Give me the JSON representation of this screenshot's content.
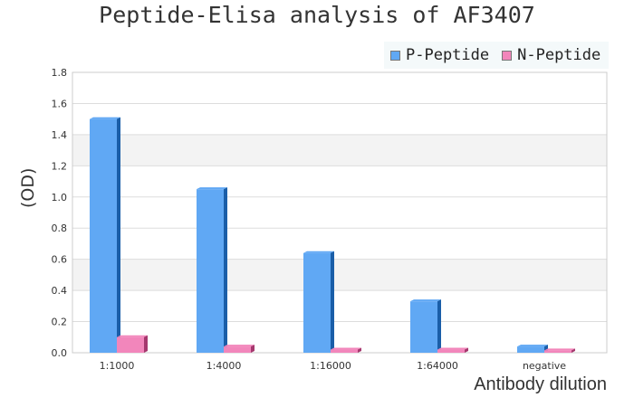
{
  "chart_data": {
    "type": "bar",
    "title": "Peptide-Elisa analysis of AF3407",
    "xlabel": "Antibody dilution",
    "ylabel": "(OD)",
    "categories": [
      "1:1000",
      "1:4000",
      "1:16000",
      "1:64000",
      "negative"
    ],
    "series": [
      {
        "name": "P-Peptide",
        "color": "#60a8f4",
        "values": [
          1.5,
          1.05,
          0.64,
          0.33,
          0.04
        ]
      },
      {
        "name": "N-Peptide",
        "color": "#f286bb",
        "values": [
          0.1,
          0.04,
          0.02,
          0.02,
          0.015
        ]
      }
    ],
    "ylim": [
      0,
      1.8
    ],
    "yticks": [
      "0.0",
      "0.2",
      "0.4",
      "0.6",
      "0.8",
      "1.0",
      "1.2",
      "1.4",
      "1.6",
      "1.8"
    ],
    "grid": true,
    "legend": "top-right"
  }
}
